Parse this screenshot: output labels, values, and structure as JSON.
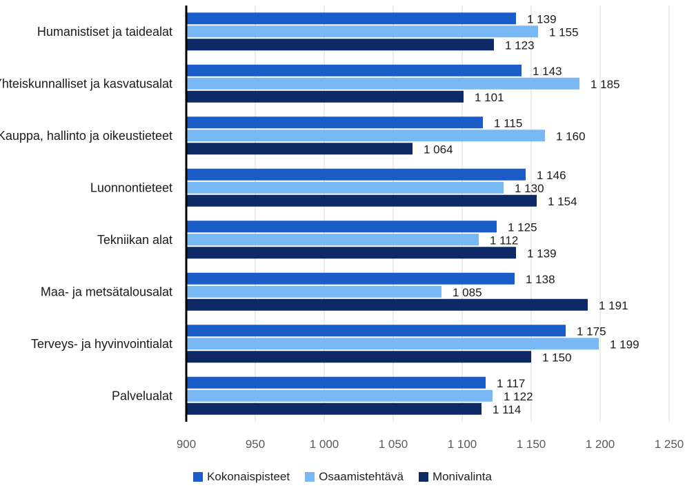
{
  "chart_data": {
    "type": "bar",
    "orientation": "horizontal",
    "categories": [
      "Humanistiset ja taidealat",
      "Yhteiskunnalliset ja kasvatusalat",
      "Kauppa, hallinto ja oikeustieteet",
      "Luonnontieteet",
      "Tekniikan alat",
      "Maa- ja metsätalousalat",
      "Terveys- ja hyvinvointialat",
      "Palvelualat"
    ],
    "series": [
      {
        "name": "Kokonaispisteet",
        "color": "#1a5cc8",
        "values": [
          1139,
          1143,
          1115,
          1146,
          1125,
          1138,
          1175,
          1117
        ],
        "labels": [
          "1 139",
          "1 143",
          "1 115",
          "1 146",
          "1 125",
          "1 138",
          "1 175",
          "1 117"
        ]
      },
      {
        "name": "Osaamistehtävä",
        "color": "#78b9f5",
        "values": [
          1155,
          1185,
          1160,
          1130,
          1112,
          1085,
          1199,
          1122
        ],
        "labels": [
          "1 155",
          "1 185",
          "1 160",
          "1 130",
          "1 112",
          "1 085",
          "1 199",
          "1 122"
        ]
      },
      {
        "name": "Monivalinta",
        "color": "#0d2a66",
        "values": [
          1123,
          1101,
          1064,
          1154,
          1139,
          1191,
          1150,
          1114
        ],
        "labels": [
          "1 123",
          "1 101",
          "1 064",
          "1 154",
          "1 139",
          "1 191",
          "1 150",
          "1 114"
        ]
      }
    ],
    "xlim": [
      900,
      1250
    ],
    "xticks": [
      900,
      950,
      1000,
      1050,
      1100,
      1150,
      1200,
      1250
    ],
    "xtick_labels": [
      "900",
      "950",
      "1 000",
      "1 050",
      "1 100",
      "1 150",
      "1 200",
      "1 250"
    ],
    "grid": true,
    "legend_position": "bottom"
  }
}
